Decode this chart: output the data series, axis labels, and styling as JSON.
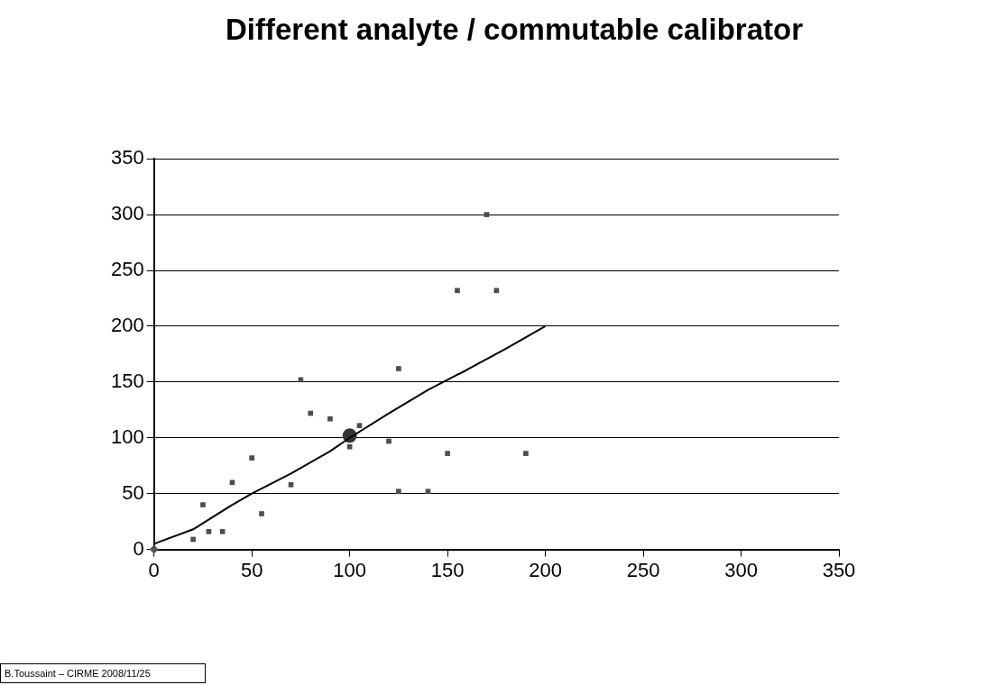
{
  "chart_data": {
    "type": "scatter",
    "title": "Different analyte / commutable calibrator",
    "xlim": [
      0,
      350
    ],
    "xticks": [
      0,
      50,
      100,
      150,
      200,
      250,
      300,
      350
    ],
    "ylim": [
      0,
      350
    ],
    "yticks": [
      0,
      50,
      100,
      150,
      200,
      250,
      300,
      350
    ],
    "grid": "y",
    "legend": false,
    "series": [
      {
        "type": "scatter",
        "marker": "square",
        "color": "#4d4d4d",
        "x": [
          20,
          25,
          28,
          35,
          40,
          50,
          55,
          70,
          75,
          80,
          90,
          100,
          105,
          120,
          125,
          125,
          140,
          150,
          155,
          170,
          175,
          190
        ],
        "values": [
          9,
          40,
          16,
          16,
          60,
          82,
          32,
          58,
          152,
          122,
          117,
          92,
          111,
          97,
          162,
          52,
          52,
          86,
          232,
          300,
          232,
          86
        ]
      },
      {
        "type": "line",
        "marker": "none",
        "color": "#000000",
        "x": [
          0,
          20,
          40,
          50,
          70,
          90,
          100,
          120,
          140,
          160,
          180,
          200
        ],
        "values": [
          5,
          18,
          40,
          50,
          68,
          88,
          100,
          122,
          143,
          161,
          180,
          200
        ]
      },
      {
        "type": "scatter",
        "marker": "circle",
        "color": "#333333",
        "x": [
          100
        ],
        "values": [
          102
        ]
      },
      {
        "type": "scatter",
        "marker": "diamond",
        "color": "#555555",
        "x": [
          0
        ],
        "values": [
          0
        ]
      }
    ],
    "annotations": [
      "B.Toussaint – CIRME 2008/11/25"
    ]
  }
}
